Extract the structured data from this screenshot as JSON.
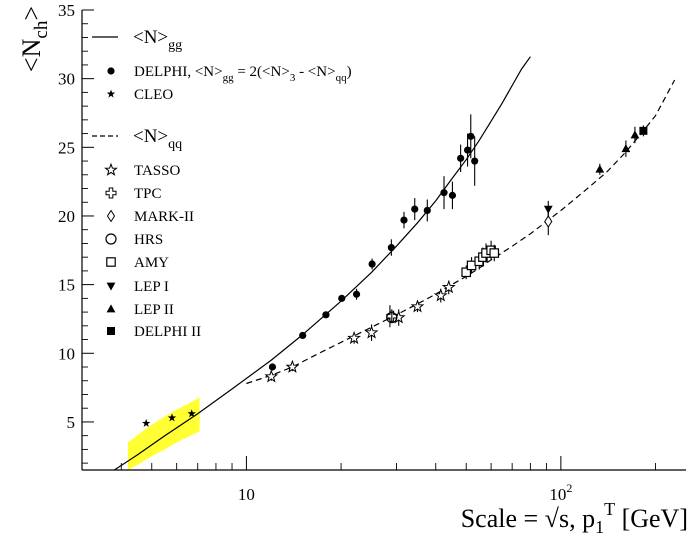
{
  "chart_data": {
    "type": "scatter",
    "x_scale": "log",
    "xlim": [
      3,
      250
    ],
    "ylim": [
      1.5,
      35
    ],
    "grid": false,
    "legend_position": "top-left",
    "xlabel": "Scale = √s, p",
    "xlabel_sub": "1",
    "xlabel_sup": "T",
    "xlabel_unit": " [GeV]",
    "ylabel": "<N",
    "ylabel_sub": "ch",
    "ylabel_tail": ">",
    "x_ticks": [
      {
        "value": 10,
        "base": "10",
        "exp": ""
      },
      {
        "value": 100,
        "base": "10",
        "exp": "2"
      }
    ],
    "y_ticks": [
      {
        "value": 5,
        "label": "5"
      },
      {
        "value": 10,
        "label": "10"
      },
      {
        "value": 15,
        "label": "15"
      },
      {
        "value": 20,
        "label": "20"
      },
      {
        "value": 25,
        "label": "25"
      },
      {
        "value": 30,
        "label": "30"
      },
      {
        "value": 35,
        "label": "35"
      }
    ],
    "legend_gg": {
      "curve_label": "<N>",
      "curve_sub": "gg",
      "entries": [
        {
          "marker": "filled-circle",
          "label": "DELPHI, <N>",
          "sub": "gg",
          "rest": " = 2(<N>",
          "sub2": "3",
          "rest2": " - <N>",
          "sub3": "qq",
          "rest3": ")"
        },
        {
          "marker": "filled-star-small",
          "label": "CLEO"
        }
      ]
    },
    "legend_qq": {
      "curve_label": "<N>",
      "curve_sub": "qq",
      "entries": [
        {
          "marker": "open-star",
          "label": "TASSO"
        },
        {
          "marker": "open-cross",
          "label": "TPC"
        },
        {
          "marker": "open-diamond",
          "label": "MARK-II"
        },
        {
          "marker": "open-circle",
          "label": "HRS"
        },
        {
          "marker": "open-square",
          "label": "AMY"
        },
        {
          "marker": "filled-triangle-down",
          "label": "LEP I"
        },
        {
          "marker": "filled-triangle-up",
          "label": "LEP II"
        },
        {
          "marker": "filled-square",
          "label": "DELPHI II"
        }
      ]
    },
    "band": {
      "color": "#ffff33",
      "x": [
        4.2,
        4.6,
        5.0,
        5.5,
        6.0,
        6.5,
        7.1
      ],
      "lower": [
        1.5,
        2.0,
        2.5,
        3.0,
        3.5,
        3.9,
        4.3
      ],
      "upper": [
        3.5,
        4.2,
        4.8,
        5.4,
        5.9,
        6.3,
        6.8
      ]
    },
    "series": [
      {
        "name": "<N>gg",
        "kind": "curve",
        "style": "solid",
        "x": [
          3.8,
          4.5,
          5.5,
          7,
          9,
          12,
          15,
          20,
          25,
          30,
          35,
          40,
          45,
          50,
          55,
          60,
          65,
          70,
          75,
          80
        ],
        "y": [
          1.5,
          2.6,
          4.0,
          5.6,
          7.4,
          9.5,
          11.3,
          13.8,
          15.9,
          17.8,
          19.5,
          21.1,
          22.7,
          24.1,
          25.5,
          26.9,
          28.2,
          29.5,
          30.7,
          31.6
        ]
      },
      {
        "name": "<N>qq",
        "kind": "curve",
        "style": "dashed",
        "x": [
          10,
          12,
          14,
          17,
          20,
          25,
          30,
          35,
          40,
          45,
          50,
          55,
          60,
          70,
          80,
          90,
          100,
          120,
          140,
          160,
          180,
          200,
          230
        ],
        "y": [
          7.8,
          8.4,
          9.0,
          10.0,
          10.8,
          11.9,
          12.8,
          13.6,
          14.3,
          15.0,
          15.6,
          16.2,
          16.8,
          17.8,
          18.7,
          19.6,
          20.4,
          21.9,
          23.2,
          24.6,
          26.0,
          27.3,
          29.9
        ]
      },
      {
        "name": "DELPHI",
        "kind": "points",
        "marker": "filled-circle",
        "points": [
          {
            "x": 12.1,
            "y": 9.0,
            "err": 0.0
          },
          {
            "x": 15.1,
            "y": 11.3,
            "err": 0.0
          },
          {
            "x": 17.9,
            "y": 12.8,
            "err": 0.0
          },
          {
            "x": 20.1,
            "y": 14.0,
            "err": 0.0
          },
          {
            "x": 22.4,
            "y": 14.3,
            "err": 0.4
          },
          {
            "x": 25.1,
            "y": 16.5,
            "err": 0.4
          },
          {
            "x": 28.6,
            "y": 12.7,
            "err": 0.8
          },
          {
            "x": 28.9,
            "y": 17.7,
            "err": 0.6
          },
          {
            "x": 31.7,
            "y": 19.7,
            "err": 0.6
          },
          {
            "x": 34.3,
            "y": 20.5,
            "err": 0.8
          },
          {
            "x": 37.6,
            "y": 20.4,
            "err": 0.8
          },
          {
            "x": 42.5,
            "y": 21.7,
            "err": 1.2
          },
          {
            "x": 45.2,
            "y": 21.5,
            "err": 1.0
          },
          {
            "x": 48.0,
            "y": 24.2,
            "err": 1.0
          },
          {
            "x": 50.5,
            "y": 24.8,
            "err": 1.2
          },
          {
            "x": 51.7,
            "y": 25.8,
            "err": 1.6
          },
          {
            "x": 53.2,
            "y": 24.0,
            "err": 1.8
          }
        ]
      },
      {
        "name": "CLEO",
        "kind": "points",
        "marker": "filled-star-small",
        "points": [
          {
            "x": 4.8,
            "y": 4.9,
            "err": 0.0
          },
          {
            "x": 5.8,
            "y": 5.3,
            "err": 0.0
          },
          {
            "x": 6.7,
            "y": 5.6,
            "err": 0.0
          }
        ]
      },
      {
        "name": "TASSO",
        "kind": "points",
        "marker": "open-star",
        "points": [
          {
            "x": 12.0,
            "y": 8.3,
            "err": 0.3
          },
          {
            "x": 14.0,
            "y": 9.0,
            "err": 0.3
          },
          {
            "x": 22.0,
            "y": 11.1,
            "err": 0.4
          },
          {
            "x": 25.0,
            "y": 11.5,
            "err": 0.6
          },
          {
            "x": 30.5,
            "y": 12.6,
            "err": 0.6
          },
          {
            "x": 35.0,
            "y": 13.4,
            "err": 0.4
          },
          {
            "x": 41.5,
            "y": 14.2,
            "err": 0.5
          },
          {
            "x": 44.0,
            "y": 14.8,
            "err": 0.5
          }
        ]
      },
      {
        "name": "TPC",
        "kind": "points",
        "marker": "open-cross",
        "points": [
          {
            "x": 29.0,
            "y": 12.7,
            "err": 0.5
          }
        ]
      },
      {
        "name": "MARK-II",
        "kind": "points",
        "marker": "open-diamond",
        "points": [
          {
            "x": 91.2,
            "y": 19.6,
            "err": 1.0
          }
        ]
      },
      {
        "name": "HRS",
        "kind": "points",
        "marker": "open-circle",
        "points": [
          {
            "x": 29.0,
            "y": 12.6,
            "err": 0.4
          }
        ]
      },
      {
        "name": "AMY",
        "kind": "points",
        "marker": "open-square",
        "points": [
          {
            "x": 50.0,
            "y": 15.9,
            "err": 0.5
          },
          {
            "x": 52.0,
            "y": 16.4,
            "err": 0.6
          },
          {
            "x": 55.0,
            "y": 16.7,
            "err": 0.6
          },
          {
            "x": 56.5,
            "y": 17.0,
            "err": 0.7
          },
          {
            "x": 57.8,
            "y": 17.3,
            "err": 0.7
          },
          {
            "x": 60.0,
            "y": 17.5,
            "err": 0.7
          },
          {
            "x": 61.4,
            "y": 17.3,
            "err": 0.6
          }
        ]
      },
      {
        "name": "LEP I",
        "kind": "points",
        "marker": "filled-triangle-down",
        "points": [
          {
            "x": 91.2,
            "y": 20.5,
            "err": 0.6
          }
        ]
      },
      {
        "name": "LEP II",
        "kind": "points",
        "marker": "filled-triangle-up",
        "points": [
          {
            "x": 133.0,
            "y": 23.4,
            "err": 0.4
          },
          {
            "x": 161.0,
            "y": 24.9,
            "err": 0.6
          },
          {
            "x": 172.0,
            "y": 25.9,
            "err": 0.6
          }
        ]
      },
      {
        "name": "DELPHI II",
        "kind": "points",
        "marker": "filled-square",
        "points": [
          {
            "x": 183.0,
            "y": 26.2,
            "err": 0.4
          }
        ]
      }
    ]
  }
}
